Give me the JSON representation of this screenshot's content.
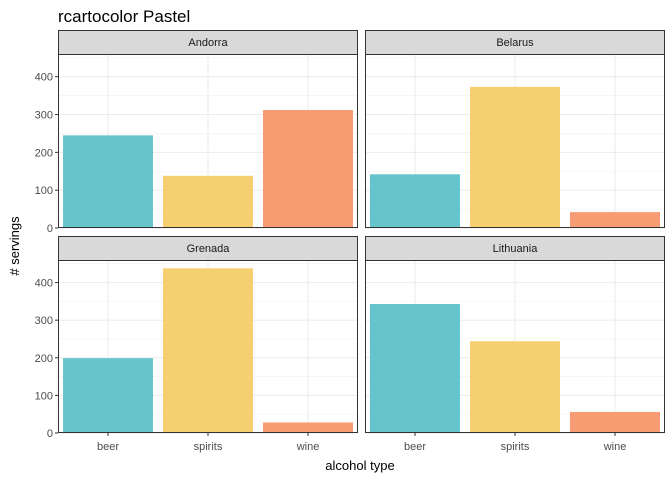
{
  "chart_data": {
    "type": "bar",
    "title": "rcartocolor Pastel",
    "xlabel": "alcohol type",
    "ylabel": "# servings",
    "categories": [
      "beer",
      "spirits",
      "wine"
    ],
    "colors": {
      "beer": "#66C5CC",
      "spirits": "#F6CF71",
      "wine": "#F89C74"
    },
    "ylim": [
      0,
      460
    ],
    "yticks": [
      0,
      100,
      200,
      300,
      400
    ],
    "ytick_labels": [
      "0",
      "100",
      "200",
      "300",
      "400"
    ],
    "grid": true,
    "facets": [
      {
        "country": "Andorra",
        "values": [
          245,
          138,
          312
        ]
      },
      {
        "country": "Belarus",
        "values": [
          142,
          373,
          42
        ]
      },
      {
        "country": "Grenada",
        "values": [
          199,
          438,
          28
        ]
      },
      {
        "country": "Lithuania",
        "values": [
          343,
          244,
          56
        ]
      }
    ]
  }
}
